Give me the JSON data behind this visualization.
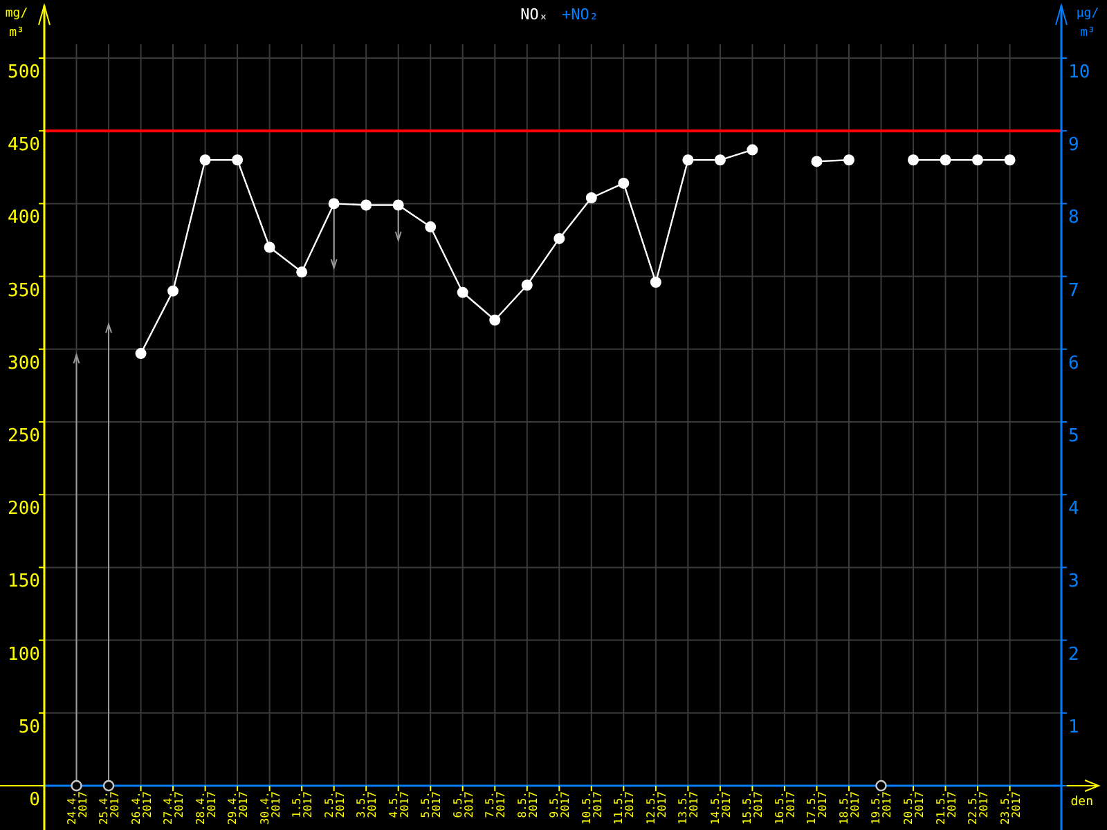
{
  "chart_data": {
    "type": "line",
    "title": "NOₓ",
    "xlabel": "den",
    "ylabel": "mg/m³",
    "y2label": "µg/m³",
    "annotations": [
      "+NO₂"
    ],
    "categories": [
      "24.4. 2017",
      "25.4. 2017",
      "26.4. 2017",
      "27.4. 2017",
      "28.4. 2017",
      "29.4. 2017",
      "30.4. 2017",
      "1.5. 2017",
      "2.5. 2017",
      "3.5. 2017",
      "4.5. 2017",
      "5.5. 2017",
      "6.5. 2017",
      "7.5. 2017",
      "8.5. 2017",
      "9.5. 2017",
      "10.5. 2017",
      "11.5. 2017",
      "12.5. 2017",
      "13.5. 2017",
      "14.5. 2017",
      "15.5. 2017",
      "16.5. 2017",
      "17.5. 2017",
      "18.5. 2017",
      "19.5. 2017",
      "20.5. 2017",
      "21.5. 2017",
      "22.5. 2017",
      "23.5. 2017"
    ],
    "series": [
      {
        "type": "line",
        "color": "#ffffff",
        "values": [
          null,
          null,
          297,
          340,
          430,
          430,
          370,
          353,
          400,
          399,
          399,
          384,
          339,
          320,
          344,
          376,
          404,
          414,
          346,
          430,
          430,
          437,
          null,
          429,
          430,
          null,
          430,
          430,
          430,
          430
        ],
        "errors": [
          null,
          null,
          null,
          null,
          null,
          null,
          null,
          null,
          [
            356,
            400
          ],
          [
            396,
            399
          ],
          [
            375,
            399
          ],
          null,
          null,
          null,
          null,
          null,
          null,
          null,
          null,
          null,
          null,
          null,
          null,
          null,
          null,
          null,
          null,
          null,
          null,
          null
        ]
      },
      {
        "type": "scatter",
        "color": "#c8c8c8",
        "values": [
          0,
          0,
          null,
          null,
          null,
          null,
          null,
          null,
          null,
          null,
          null,
          null,
          null,
          null,
          null,
          null,
          null,
          null,
          null,
          null,
          null,
          null,
          null,
          null,
          null,
          0,
          null,
          null,
          null,
          null
        ],
        "errors": [
          [
            0,
            296
          ],
          [
            0,
            317
          ],
          null,
          null,
          null,
          null,
          null,
          null,
          null,
          null,
          null,
          null,
          null,
          null,
          null,
          null,
          null,
          null,
          null,
          null,
          null,
          null,
          null,
          null,
          null,
          null,
          null,
          null,
          null,
          null
        ]
      }
    ],
    "ylim": [
      0,
      500
    ],
    "yticks": [
      0,
      50,
      100,
      150,
      200,
      250,
      300,
      350,
      400,
      450,
      500
    ],
    "y2lim": [
      0,
      10
    ],
    "y2ticks": [
      {
        "value": 0,
        "label": null
      },
      1,
      2,
      3,
      4,
      5,
      6,
      7,
      8,
      9,
      10
    ],
    "ref_lines": [
      {
        "axis": "y",
        "value": 450,
        "color": "#ff0000"
      }
    ],
    "grid": true,
    "marker": "circle"
  }
}
